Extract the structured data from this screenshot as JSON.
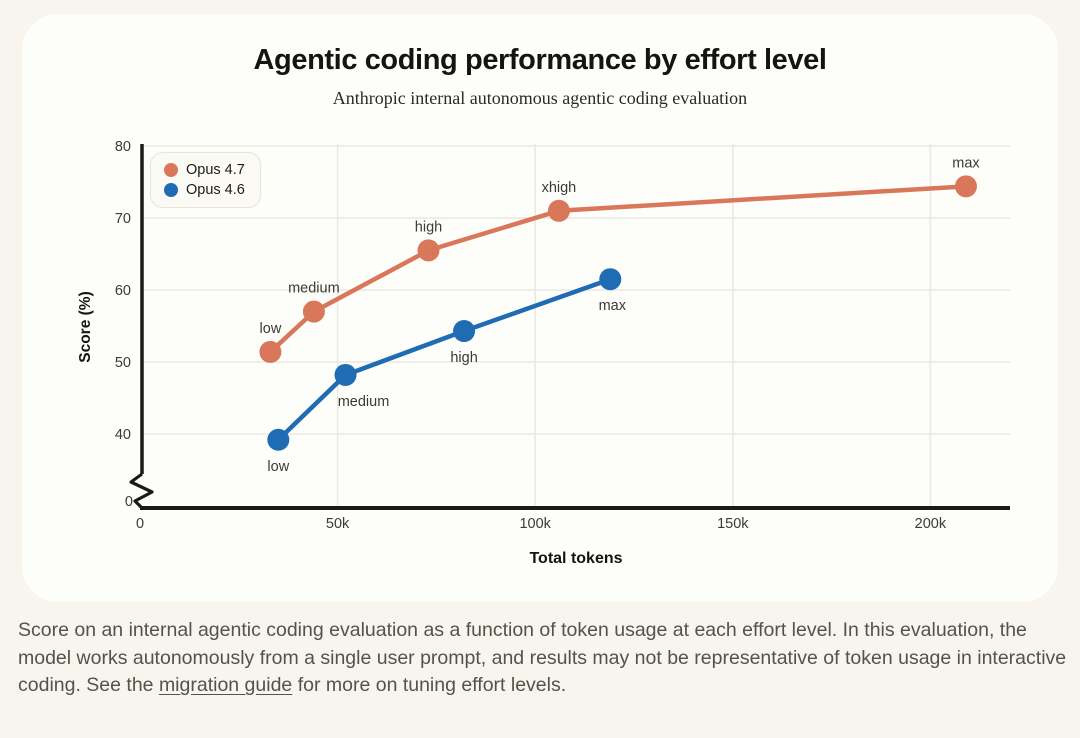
{
  "header": {
    "title": "Agentic coding performance by effort level",
    "subtitle": "Anthropic internal autonomous agentic coding evaluation"
  },
  "colors": {
    "background": "#f7f5ee",
    "card": "#fdfdfa",
    "opus47": "#d9775a",
    "opus46": "#1f6cb4",
    "gridline": "#eae8e1",
    "axis": "#1a1a18",
    "tick_text": "#3c3a35",
    "point_label": "#3c3a35"
  },
  "legend": {
    "items": [
      {
        "label": "Opus 4.7",
        "color": "#d9775a"
      },
      {
        "label": "Opus 4.6",
        "color": "#1f6cb4"
      }
    ]
  },
  "chart_data": {
    "type": "line",
    "title": "Agentic coding performance by effort level",
    "subtitle": "Anthropic internal autonomous agentic coding evaluation",
    "xlabel": "Total tokens",
    "ylabel": "Score (%)",
    "grid": true,
    "legend_position": "top-left",
    "y_axis_break": true,
    "xlim": [
      0,
      220000
    ],
    "ylim_shown": [
      40,
      80
    ],
    "x_ticks": [
      {
        "label": "0",
        "value": 0
      },
      {
        "label": "50k",
        "value": 50000
      },
      {
        "label": "100k",
        "value": 100000
      },
      {
        "label": "150k",
        "value": 150000
      },
      {
        "label": "200k",
        "value": 200000
      }
    ],
    "y_ticks": [
      0,
      40,
      50,
      60,
      70,
      80
    ],
    "series": [
      {
        "name": "Opus 4.7",
        "color": "#d9775a",
        "points": [
          {
            "label": "low",
            "x": 33000,
            "y": 51.4,
            "label_pos": "above",
            "label_dx": 0
          },
          {
            "label": "medium",
            "x": 44000,
            "y": 57.0,
            "label_pos": "above",
            "label_dx": 0
          },
          {
            "label": "high",
            "x": 73000,
            "y": 65.5,
            "label_pos": "above",
            "label_dx": 0
          },
          {
            "label": "xhigh",
            "x": 106000,
            "y": 71.0,
            "label_pos": "above",
            "label_dx": 0
          },
          {
            "label": "max",
            "x": 209000,
            "y": 74.4,
            "label_pos": "above",
            "label_dx": 0
          }
        ]
      },
      {
        "name": "Opus 4.6",
        "color": "#1f6cb4",
        "points": [
          {
            "label": "low",
            "x": 35000,
            "y": 39.2,
            "label_pos": "below",
            "label_dx": 0
          },
          {
            "label": "medium",
            "x": 52000,
            "y": 48.2,
            "label_pos": "below",
            "label_dx": 18
          },
          {
            "label": "high",
            "x": 82000,
            "y": 54.3,
            "label_pos": "below",
            "label_dx": 0
          },
          {
            "label": "max",
            "x": 119000,
            "y": 61.5,
            "label_pos": "below",
            "label_dx": 2
          }
        ]
      }
    ]
  },
  "caption": {
    "pre_link": "Score on an internal agentic coding evaluation as a function of token usage at each effort level. In this evaluation, the model works autonomously from a single user prompt, and results may not be representative of token usage in interactive coding. See the ",
    "link": "migration guide",
    "post_link": " for more on tuning effort levels."
  }
}
